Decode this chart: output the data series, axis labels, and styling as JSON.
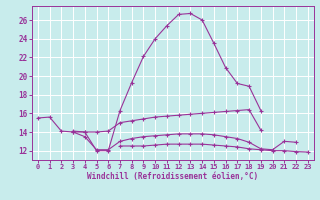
{
  "xlabel": "Windchill (Refroidissement éolien,°C)",
  "bg_color": "#c8ecec",
  "line_color": "#993399",
  "grid_color": "#ffffff",
  "x_ticks": [
    0,
    1,
    2,
    3,
    4,
    5,
    6,
    7,
    8,
    9,
    10,
    11,
    12,
    13,
    14,
    15,
    16,
    17,
    18,
    19,
    20,
    21,
    22,
    23
  ],
  "y_ticks": [
    12,
    14,
    16,
    18,
    20,
    22,
    24,
    26
  ],
  "xlim": [
    -0.5,
    23.5
  ],
  "ylim": [
    11.0,
    27.5
  ],
  "lines": [
    [
      15.5,
      15.6,
      14.1,
      14.0,
      14.0,
      12.0,
      12.0,
      16.3,
      19.3,
      22.1,
      24.0,
      25.4,
      26.6,
      26.7,
      26.0,
      23.5,
      20.9,
      19.2,
      18.9,
      16.3,
      null,
      null,
      null,
      null
    ],
    [
      null,
      null,
      null,
      14.1,
      14.0,
      14.0,
      14.1,
      15.0,
      15.2,
      15.4,
      15.6,
      15.7,
      15.8,
      15.9,
      16.0,
      16.1,
      16.2,
      16.3,
      16.4,
      14.2,
      null,
      null,
      null,
      null
    ],
    [
      null,
      null,
      null,
      14.0,
      13.5,
      12.1,
      12.1,
      13.0,
      13.3,
      13.5,
      13.6,
      13.7,
      13.8,
      13.8,
      13.8,
      13.7,
      13.5,
      13.3,
      12.9,
      12.2,
      12.1,
      13.0,
      12.9,
      null
    ],
    [
      null,
      null,
      null,
      null,
      null,
      null,
      null,
      12.5,
      12.5,
      12.5,
      12.6,
      12.7,
      12.7,
      12.7,
      12.7,
      12.6,
      12.5,
      12.4,
      12.2,
      12.1,
      12.0,
      12.0,
      11.9,
      11.85
    ]
  ]
}
